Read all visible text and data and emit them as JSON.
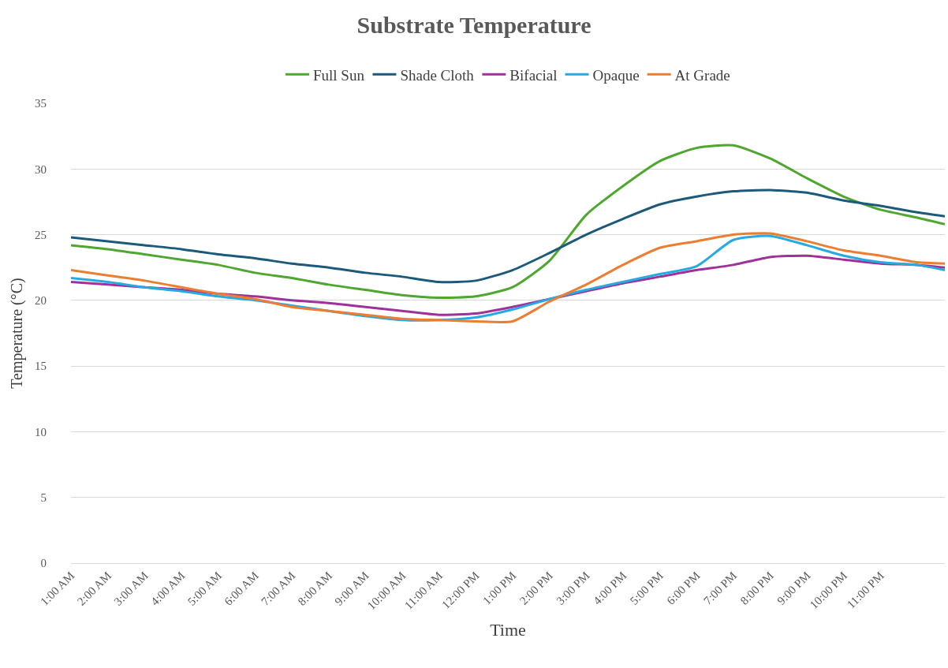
{
  "chart_data": {
    "type": "line",
    "title": "Substrate Temperature",
    "xlabel": "Time",
    "ylabel": "Temperature (°C)",
    "x": [
      1,
      2,
      3,
      4,
      5,
      6,
      7,
      8,
      9,
      10,
      11,
      12,
      13,
      14,
      15,
      16,
      17,
      18,
      19,
      20,
      21,
      22,
      23,
      24,
      24.75
    ],
    "xlim": [
      1,
      24.75
    ],
    "xticks": [
      {
        "value": 1,
        "label": "1:00 AM"
      },
      {
        "value": 2,
        "label": "2:00 AM"
      },
      {
        "value": 3,
        "label": "3:00 AM"
      },
      {
        "value": 4,
        "label": "4:00 AM"
      },
      {
        "value": 5,
        "label": "5:00 AM"
      },
      {
        "value": 6,
        "label": "6:00 AM"
      },
      {
        "value": 7,
        "label": "7:00 AM"
      },
      {
        "value": 8,
        "label": "8:00 AM"
      },
      {
        "value": 9,
        "label": "9:00 AM"
      },
      {
        "value": 10,
        "label": "10:00 AM"
      },
      {
        "value": 11,
        "label": "11:00 AM"
      },
      {
        "value": 12,
        "label": "12:00 PM"
      },
      {
        "value": 13,
        "label": "1:00 PM"
      },
      {
        "value": 14,
        "label": "2:00 PM"
      },
      {
        "value": 15,
        "label": "3:00 PM"
      },
      {
        "value": 16,
        "label": "4:00 PM"
      },
      {
        "value": 17,
        "label": "5:00 PM"
      },
      {
        "value": 18,
        "label": "6:00 PM"
      },
      {
        "value": 19,
        "label": "7:00 PM"
      },
      {
        "value": 20,
        "label": "8:00 PM"
      },
      {
        "value": 21,
        "label": "9:00 PM"
      },
      {
        "value": 22,
        "label": "10:00 PM"
      },
      {
        "value": 23,
        "label": "11:00 PM"
      }
    ],
    "ylim": [
      0,
      35
    ],
    "yticks": [
      0,
      5,
      10,
      15,
      20,
      25,
      30,
      35
    ],
    "grid": "y",
    "legend": "top",
    "marker": "none",
    "line_style": "solid",
    "series": [
      {
        "name": "Full Sun",
        "color": "#4ea72e",
        "values": [
          24.2,
          23.9,
          23.5,
          23.1,
          22.7,
          22.1,
          21.7,
          21.2,
          20.8,
          20.4,
          20.2,
          20.3,
          21.0,
          23.0,
          26.5,
          28.7,
          30.6,
          31.6,
          31.8,
          30.8,
          29.3,
          27.9,
          26.9,
          26.3,
          25.8
        ]
      },
      {
        "name": "Shade Cloth",
        "color": "#1b5a7a",
        "values": [
          24.8,
          24.5,
          24.2,
          23.9,
          23.5,
          23.2,
          22.8,
          22.5,
          22.1,
          21.8,
          21.4,
          21.5,
          22.3,
          23.6,
          25.0,
          26.2,
          27.3,
          27.9,
          28.3,
          28.4,
          28.2,
          27.6,
          27.2,
          26.7,
          26.4
        ]
      },
      {
        "name": "Bifacial",
        "color": "#a0309a",
        "values": [
          21.4,
          21.2,
          21.0,
          20.8,
          20.5,
          20.3,
          20.0,
          19.8,
          19.5,
          19.2,
          18.9,
          19.0,
          19.5,
          20.1,
          20.7,
          21.3,
          21.8,
          22.3,
          22.7,
          23.3,
          23.4,
          23.1,
          22.8,
          22.7,
          22.5
        ]
      },
      {
        "name": "Opaque",
        "color": "#27a9e1",
        "values": [
          21.7,
          21.4,
          21.0,
          20.7,
          20.3,
          20.0,
          19.6,
          19.2,
          18.8,
          18.5,
          18.5,
          18.7,
          19.3,
          20.1,
          20.8,
          21.4,
          22.0,
          22.6,
          24.6,
          24.9,
          24.2,
          23.4,
          22.9,
          22.7,
          22.3
        ]
      },
      {
        "name": "At Grade",
        "color": "#ed7d31",
        "values": [
          22.3,
          21.9,
          21.5,
          21.0,
          20.5,
          20.1,
          19.5,
          19.2,
          18.9,
          18.6,
          18.5,
          18.4,
          18.4,
          19.9,
          21.2,
          22.7,
          24.0,
          24.5,
          25.0,
          25.1,
          24.5,
          23.8,
          23.4,
          22.9,
          22.8
        ]
      }
    ]
  }
}
